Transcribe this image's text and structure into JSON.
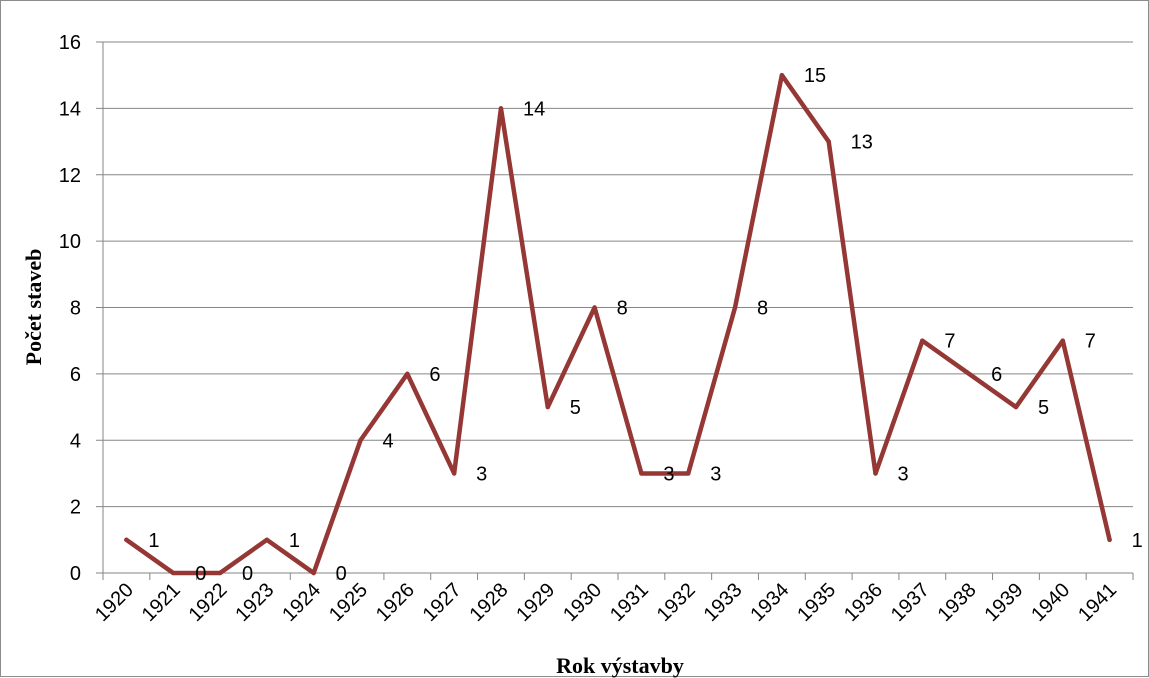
{
  "chart_data": {
    "type": "line",
    "title": "",
    "xlabel": "Rok výstavby",
    "ylabel": "Počet staveb",
    "ylim": [
      0,
      16
    ],
    "yticks": [
      0,
      2,
      4,
      6,
      8,
      10,
      12,
      14,
      16
    ],
    "grid": "horizontal",
    "legend": "none",
    "categories": [
      "1920",
      "1921",
      "1922",
      "1923",
      "1924",
      "1925",
      "1926",
      "1927",
      "1928",
      "1929",
      "1930",
      "1931",
      "1932",
      "1933",
      "1934",
      "1935",
      "1936",
      "1937",
      "1938",
      "1939",
      "1940",
      "1941"
    ],
    "series": [
      {
        "color": "#953735",
        "values": [
          1,
          0,
          0,
          1,
          0,
          4,
          6,
          3,
          14,
          5,
          8,
          3,
          3,
          8,
          15,
          13,
          3,
          7,
          6,
          5,
          7,
          1
        ]
      }
    ]
  }
}
